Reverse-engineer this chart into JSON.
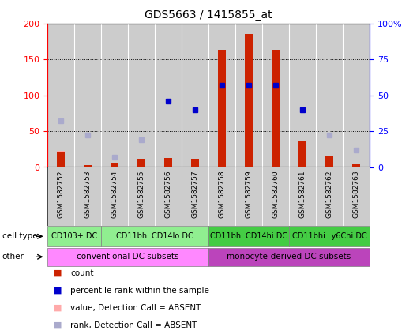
{
  "title": "GDS5663 / 1415855_at",
  "samples": [
    "GSM1582752",
    "GSM1582753",
    "GSM1582754",
    "GSM1582755",
    "GSM1582756",
    "GSM1582757",
    "GSM1582758",
    "GSM1582759",
    "GSM1582760",
    "GSM1582761",
    "GSM1582762",
    "GSM1582763"
  ],
  "count_values": [
    20,
    3,
    5,
    12,
    13,
    11,
    163,
    185,
    163,
    37,
    15,
    4
  ],
  "rank_values": [
    null,
    null,
    null,
    null,
    46,
    40,
    57,
    57,
    57,
    40,
    null,
    null
  ],
  "absent_count": [
    22,
    null,
    null,
    null,
    null,
    null,
    null,
    null,
    null,
    15,
    null,
    null
  ],
  "absent_rank": [
    32,
    22,
    7,
    19,
    null,
    null,
    null,
    null,
    null,
    null,
    22,
    12
  ],
  "ylim_left": [
    0,
    200
  ],
  "ylim_right": [
    0,
    100
  ],
  "yticks_left": [
    0,
    50,
    100,
    150,
    200
  ],
  "ytick_labels_left": [
    "0",
    "50",
    "100",
    "150",
    "200"
  ],
  "yticks_right": [
    0,
    25,
    50,
    75,
    100
  ],
  "ytick_labels_right": [
    "0",
    "25",
    "50",
    "75",
    "100%"
  ],
  "cell_type_groups": [
    {
      "label": "CD103+ DC",
      "start": 0,
      "end": 1,
      "color": "#90EE90"
    },
    {
      "label": "CD11bhi CD14lo DC",
      "start": 2,
      "end": 5,
      "color": "#90EE90"
    },
    {
      "label": "CD11bhi CD14hi DC",
      "start": 6,
      "end": 8,
      "color": "#44CC44"
    },
    {
      "label": "CD11bhi Ly6Chi DC",
      "start": 9,
      "end": 11,
      "color": "#44CC44"
    }
  ],
  "other_groups": [
    {
      "label": "conventional DC subsets",
      "start": 0,
      "end": 5,
      "color": "#FF88FF"
    },
    {
      "label": "monocyte-derived DC subsets",
      "start": 6,
      "end": 11,
      "color": "#BB44BB"
    }
  ],
  "bar_color": "#CC2200",
  "rank_color": "#0000CC",
  "absent_count_color": "#FFAAAA",
  "absent_rank_color": "#AAAACC",
  "bg_color": "#FFFFFF",
  "col_bg_color": "#CCCCCC",
  "grid_color": "#000000"
}
